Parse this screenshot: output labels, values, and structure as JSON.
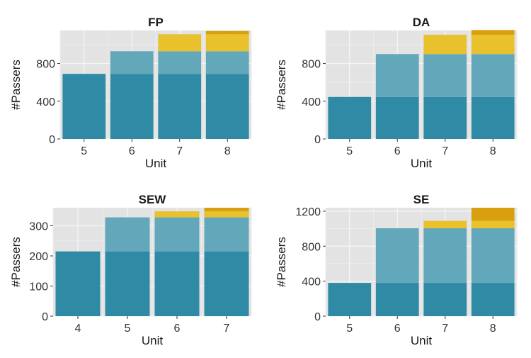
{
  "colors": {
    "panel_bg": "#e3e3e3",
    "grid_major": "#f5f5f5",
    "grid_minor": "#ececec",
    "seg1": "#2f8aa5",
    "seg2": "#62a8ba",
    "seg3": "#e8c12d",
    "seg4": "#d8a00e"
  },
  "chart_data": [
    {
      "type": "bar",
      "stacked": true,
      "title": "FP",
      "xlabel": "Unit",
      "ylabel": "#Passers",
      "categories": [
        "5",
        "6",
        "7",
        "8"
      ],
      "ylim": [
        0,
        1150
      ],
      "yticks": [
        0,
        400,
        800,
        1200
      ],
      "series": [
        {
          "name": "segment-1",
          "values": [
            690,
            690,
            690,
            690
          ]
        },
        {
          "name": "segment-2",
          "values": [
            0,
            240,
            240,
            240
          ]
        },
        {
          "name": "segment-3",
          "values": [
            0,
            0,
            180,
            180
          ]
        },
        {
          "name": "segment-4",
          "values": [
            0,
            0,
            0,
            35
          ]
        }
      ]
    },
    {
      "type": "bar",
      "stacked": true,
      "title": "DA",
      "xlabel": "Unit",
      "ylabel": "#Passers",
      "categories": [
        "5",
        "6",
        "7",
        "8"
      ],
      "ylim": [
        0,
        1150
      ],
      "yticks": [
        0,
        400,
        800,
        1200
      ],
      "series": [
        {
          "name": "segment-1",
          "values": [
            445,
            445,
            445,
            445
          ]
        },
        {
          "name": "segment-2",
          "values": [
            0,
            455,
            455,
            455
          ]
        },
        {
          "name": "segment-3",
          "values": [
            0,
            0,
            205,
            205
          ]
        },
        {
          "name": "segment-4",
          "values": [
            0,
            0,
            0,
            50
          ]
        }
      ]
    },
    {
      "type": "bar",
      "stacked": true,
      "title": "SEW",
      "xlabel": "Unit",
      "ylabel": "#Passers",
      "categories": [
        "4",
        "5",
        "6",
        "7"
      ],
      "ylim": [
        0,
        360
      ],
      "yticks": [
        0,
        100,
        200,
        300
      ],
      "series": [
        {
          "name": "segment-1",
          "values": [
            215,
            215,
            215,
            215
          ]
        },
        {
          "name": "segment-2",
          "values": [
            0,
            113,
            113,
            113
          ]
        },
        {
          "name": "segment-3",
          "values": [
            0,
            0,
            20,
            20
          ]
        },
        {
          "name": "segment-4",
          "values": [
            0,
            0,
            0,
            12
          ]
        }
      ]
    },
    {
      "type": "bar",
      "stacked": true,
      "title": "SE",
      "xlabel": "Unit",
      "ylabel": "#Passers",
      "categories": [
        "5",
        "6",
        "7",
        "8"
      ],
      "ylim": [
        0,
        1240
      ],
      "yticks": [
        0,
        400,
        800,
        1200
      ],
      "series": [
        {
          "name": "segment-1",
          "values": [
            380,
            380,
            380,
            380
          ]
        },
        {
          "name": "segment-2",
          "values": [
            0,
            625,
            625,
            625
          ]
        },
        {
          "name": "segment-3",
          "values": [
            0,
            0,
            85,
            85
          ]
        },
        {
          "name": "segment-4",
          "values": [
            0,
            0,
            0,
            150
          ]
        }
      ]
    }
  ]
}
